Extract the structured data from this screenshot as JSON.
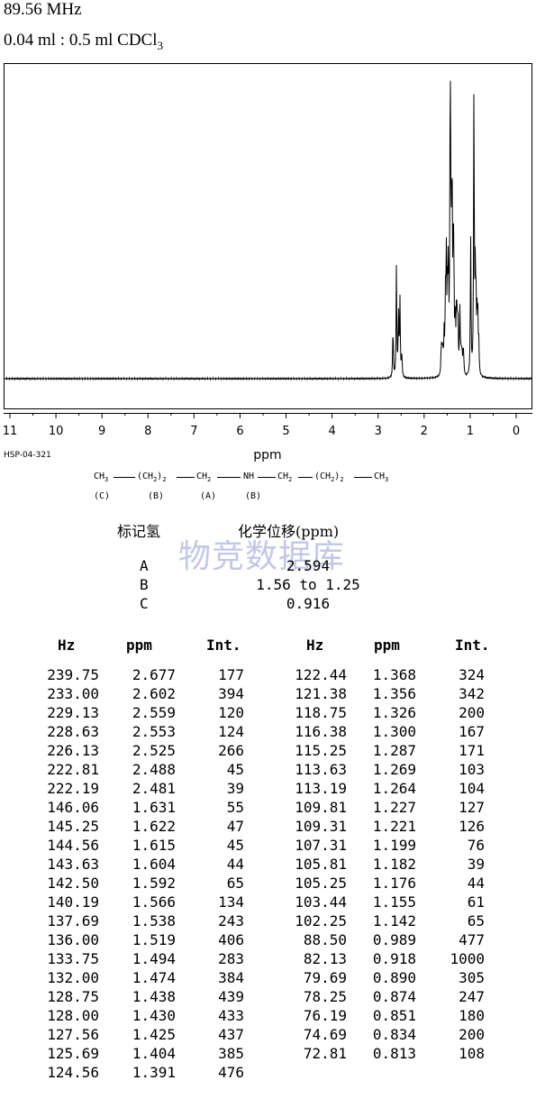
{
  "header": {
    "frequency": "89.56 MHz",
    "solvent_prefix": "0.04 ml : 0.5 ml CDCl",
    "solvent_subscript": "3"
  },
  "spectrum_code": "HSP-04-321",
  "chart_data": {
    "type": "line",
    "title": "",
    "xlabel": "ppm",
    "ylabel": "",
    "xlim": [
      11,
      0
    ],
    "x_reversed": true,
    "grid": false,
    "legend": "none",
    "x_ticks": [
      "11",
      "10",
      "9",
      "8",
      "7",
      "6",
      "5",
      "4",
      "3",
      "2",
      "1",
      "0"
    ],
    "peaks": [
      {
        "ppm": 2.677,
        "int": 177
      },
      {
        "ppm": 2.602,
        "int": 394
      },
      {
        "ppm": 2.559,
        "int": 120
      },
      {
        "ppm": 2.553,
        "int": 124
      },
      {
        "ppm": 2.525,
        "int": 266
      },
      {
        "ppm": 2.488,
        "int": 45
      },
      {
        "ppm": 2.481,
        "int": 39
      },
      {
        "ppm": 1.631,
        "int": 55
      },
      {
        "ppm": 1.622,
        "int": 47
      },
      {
        "ppm": 1.615,
        "int": 45
      },
      {
        "ppm": 1.604,
        "int": 44
      },
      {
        "ppm": 1.592,
        "int": 65
      },
      {
        "ppm": 1.566,
        "int": 134
      },
      {
        "ppm": 1.538,
        "int": 243
      },
      {
        "ppm": 1.519,
        "int": 406
      },
      {
        "ppm": 1.494,
        "int": 283
      },
      {
        "ppm": 1.474,
        "int": 384
      },
      {
        "ppm": 1.438,
        "int": 439
      },
      {
        "ppm": 1.43,
        "int": 433
      },
      {
        "ppm": 1.425,
        "int": 437
      },
      {
        "ppm": 1.404,
        "int": 385
      },
      {
        "ppm": 1.391,
        "int": 476
      },
      {
        "ppm": 1.368,
        "int": 324
      },
      {
        "ppm": 1.356,
        "int": 342
      },
      {
        "ppm": 1.326,
        "int": 200
      },
      {
        "ppm": 1.3,
        "int": 167
      },
      {
        "ppm": 1.287,
        "int": 171
      },
      {
        "ppm": 1.269,
        "int": 103
      },
      {
        "ppm": 1.264,
        "int": 104
      },
      {
        "ppm": 1.227,
        "int": 127
      },
      {
        "ppm": 1.221,
        "int": 126
      },
      {
        "ppm": 1.199,
        "int": 76
      },
      {
        "ppm": 1.182,
        "int": 39
      },
      {
        "ppm": 1.176,
        "int": 44
      },
      {
        "ppm": 1.155,
        "int": 61
      },
      {
        "ppm": 1.142,
        "int": 65
      },
      {
        "ppm": 0.989,
        "int": 477
      },
      {
        "ppm": 0.918,
        "int": 1000
      },
      {
        "ppm": 0.89,
        "int": 305
      },
      {
        "ppm": 0.874,
        "int": 247
      },
      {
        "ppm": 0.851,
        "int": 180
      },
      {
        "ppm": 0.834,
        "int": 200
      },
      {
        "ppm": 0.813,
        "int": 108
      }
    ]
  },
  "structure": {
    "labels": [
      "(C)",
      "(B)",
      "(A)",
      "(B)"
    ]
  },
  "shift_table": {
    "header_label": "标记氢",
    "header_shift": "化学位移(ppm)",
    "rows": [
      {
        "label": "A",
        "shift": "2.594"
      },
      {
        "label": "B",
        "shift": "1.56 to 1.25"
      },
      {
        "label": "C",
        "shift": "0.916"
      }
    ]
  },
  "watermark": "物竞数据库",
  "peak_table": {
    "columns": [
      "Hz",
      "ppm",
      "Int.",
      "Hz",
      "ppm",
      "Int."
    ],
    "left": [
      [
        "239.75",
        "2.677",
        "177"
      ],
      [
        "233.00",
        "2.602",
        "394"
      ],
      [
        "229.13",
        "2.559",
        "120"
      ],
      [
        "228.63",
        "2.553",
        "124"
      ],
      [
        "226.13",
        "2.525",
        "266"
      ],
      [
        "222.81",
        "2.488",
        "45"
      ],
      [
        "222.19",
        "2.481",
        "39"
      ],
      [
        "146.06",
        "1.631",
        "55"
      ],
      [
        "145.25",
        "1.622",
        "47"
      ],
      [
        "144.56",
        "1.615",
        "45"
      ],
      [
        "143.63",
        "1.604",
        "44"
      ],
      [
        "142.50",
        "1.592",
        "65"
      ],
      [
        "140.19",
        "1.566",
        "134"
      ],
      [
        "137.69",
        "1.538",
        "243"
      ],
      [
        "136.00",
        "1.519",
        "406"
      ],
      [
        "133.75",
        "1.494",
        "283"
      ],
      [
        "132.00",
        "1.474",
        "384"
      ],
      [
        "128.75",
        "1.438",
        "439"
      ],
      [
        "128.00",
        "1.430",
        "433"
      ],
      [
        "127.56",
        "1.425",
        "437"
      ],
      [
        "125.69",
        "1.404",
        "385"
      ],
      [
        "124.56",
        "1.391",
        "476"
      ]
    ],
    "right": [
      [
        "122.44",
        "1.368",
        "324"
      ],
      [
        "121.38",
        "1.356",
        "342"
      ],
      [
        "118.75",
        "1.326",
        "200"
      ],
      [
        "116.38",
        "1.300",
        "167"
      ],
      [
        "115.25",
        "1.287",
        "171"
      ],
      [
        "113.63",
        "1.269",
        "103"
      ],
      [
        "113.19",
        "1.264",
        "104"
      ],
      [
        "109.81",
        "1.227",
        "127"
      ],
      [
        "109.31",
        "1.221",
        "126"
      ],
      [
        "107.31",
        "1.199",
        "76"
      ],
      [
        "105.81",
        "1.182",
        "39"
      ],
      [
        "105.25",
        "1.176",
        "44"
      ],
      [
        "103.44",
        "1.155",
        "61"
      ],
      [
        "102.25",
        "1.142",
        "65"
      ],
      [
        "88.50",
        "0.989",
        "477"
      ],
      [
        "82.13",
        "0.918",
        "1000"
      ],
      [
        "79.69",
        "0.890",
        "305"
      ],
      [
        "78.25",
        "0.874",
        "247"
      ],
      [
        "76.19",
        "0.851",
        "180"
      ],
      [
        "74.69",
        "0.834",
        "200"
      ],
      [
        "72.81",
        "0.813",
        "108"
      ]
    ]
  }
}
